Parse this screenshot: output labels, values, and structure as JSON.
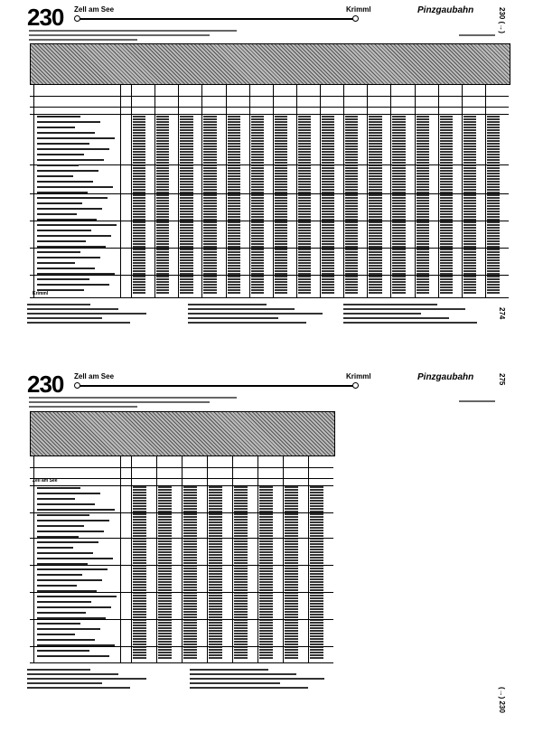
{
  "pages": [
    {
      "table_number": "230",
      "from_station": "Zell am See",
      "to_station": "Krimml",
      "line_name": "Pinzgaubahn",
      "side_label": "230 (→)",
      "page_number": "274",
      "last_station": "Krimml"
    },
    {
      "table_number": "230",
      "from_station": "Zell am See",
      "to_station": "Krimml",
      "line_name": "Pinzgaubahn",
      "page_number": "275",
      "side_label": "(→) 230",
      "first_station": "Zell am See"
    }
  ]
}
